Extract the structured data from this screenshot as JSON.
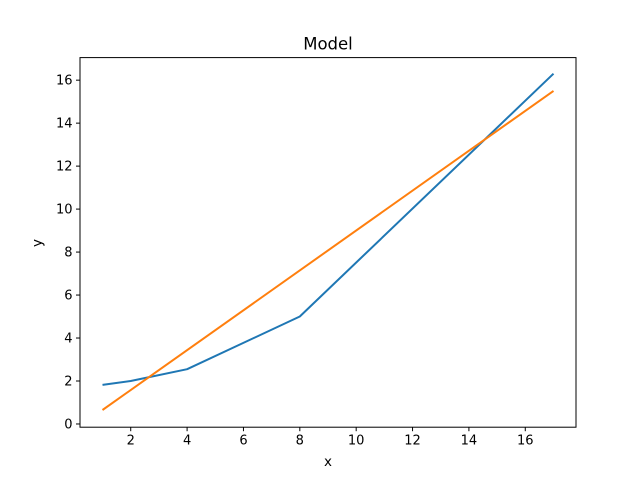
{
  "chart_data": {
    "type": "line",
    "title": "Model",
    "xlabel": "x",
    "ylabel": "y",
    "xlim": [
      0.2,
      17.8
    ],
    "ylim": [
      -0.15,
      17.05
    ],
    "xticks": [
      2,
      4,
      6,
      8,
      10,
      12,
      14,
      16
    ],
    "yticks": [
      0,
      2,
      4,
      6,
      8,
      10,
      12,
      14,
      16
    ],
    "grid": false,
    "legend": false,
    "axis_color": "#000000",
    "background_color": "#ffffff",
    "series": [
      {
        "id": "series-1",
        "color": "#1f77b4",
        "points": [
          [
            1,
            1.82
          ],
          [
            2,
            2.0
          ],
          [
            4,
            2.55
          ],
          [
            8,
            5.0
          ],
          [
            17,
            16.3
          ]
        ]
      },
      {
        "id": "series-2",
        "color": "#ff7f0e",
        "points": [
          [
            1,
            0.65
          ],
          [
            17,
            15.5
          ]
        ]
      }
    ]
  }
}
